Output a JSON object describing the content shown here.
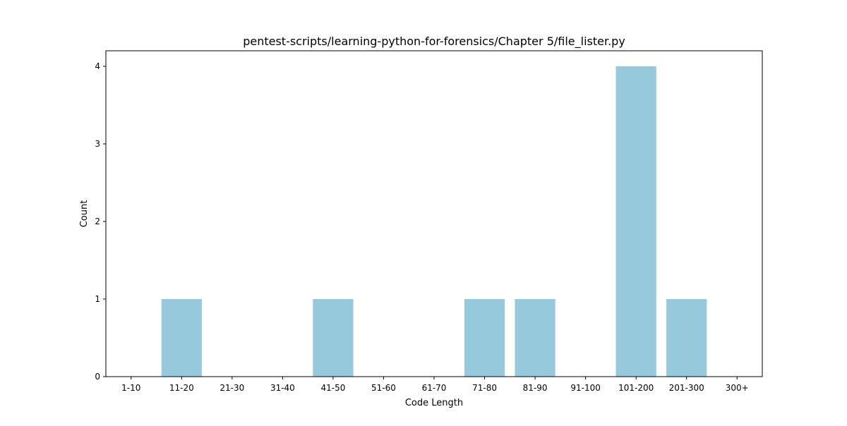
{
  "chart_data": {
    "type": "bar",
    "title": "pentest-scripts/learning-python-for-forensics/Chapter 5/file_lister.py",
    "xlabel": "Code Length",
    "ylabel": "Count",
    "categories": [
      "1-10",
      "11-20",
      "21-30",
      "31-40",
      "41-50",
      "51-60",
      "61-70",
      "71-80",
      "81-90",
      "91-100",
      "101-200",
      "201-300",
      "300+"
    ],
    "values": [
      0,
      1,
      0,
      0,
      1,
      0,
      0,
      1,
      1,
      0,
      4,
      1,
      0
    ],
    "ylim": [
      0,
      4.2
    ],
    "yticks": [
      0,
      1,
      2,
      3,
      4
    ],
    "bar_color": "#96c9dc",
    "grid": false,
    "legend": "none"
  }
}
